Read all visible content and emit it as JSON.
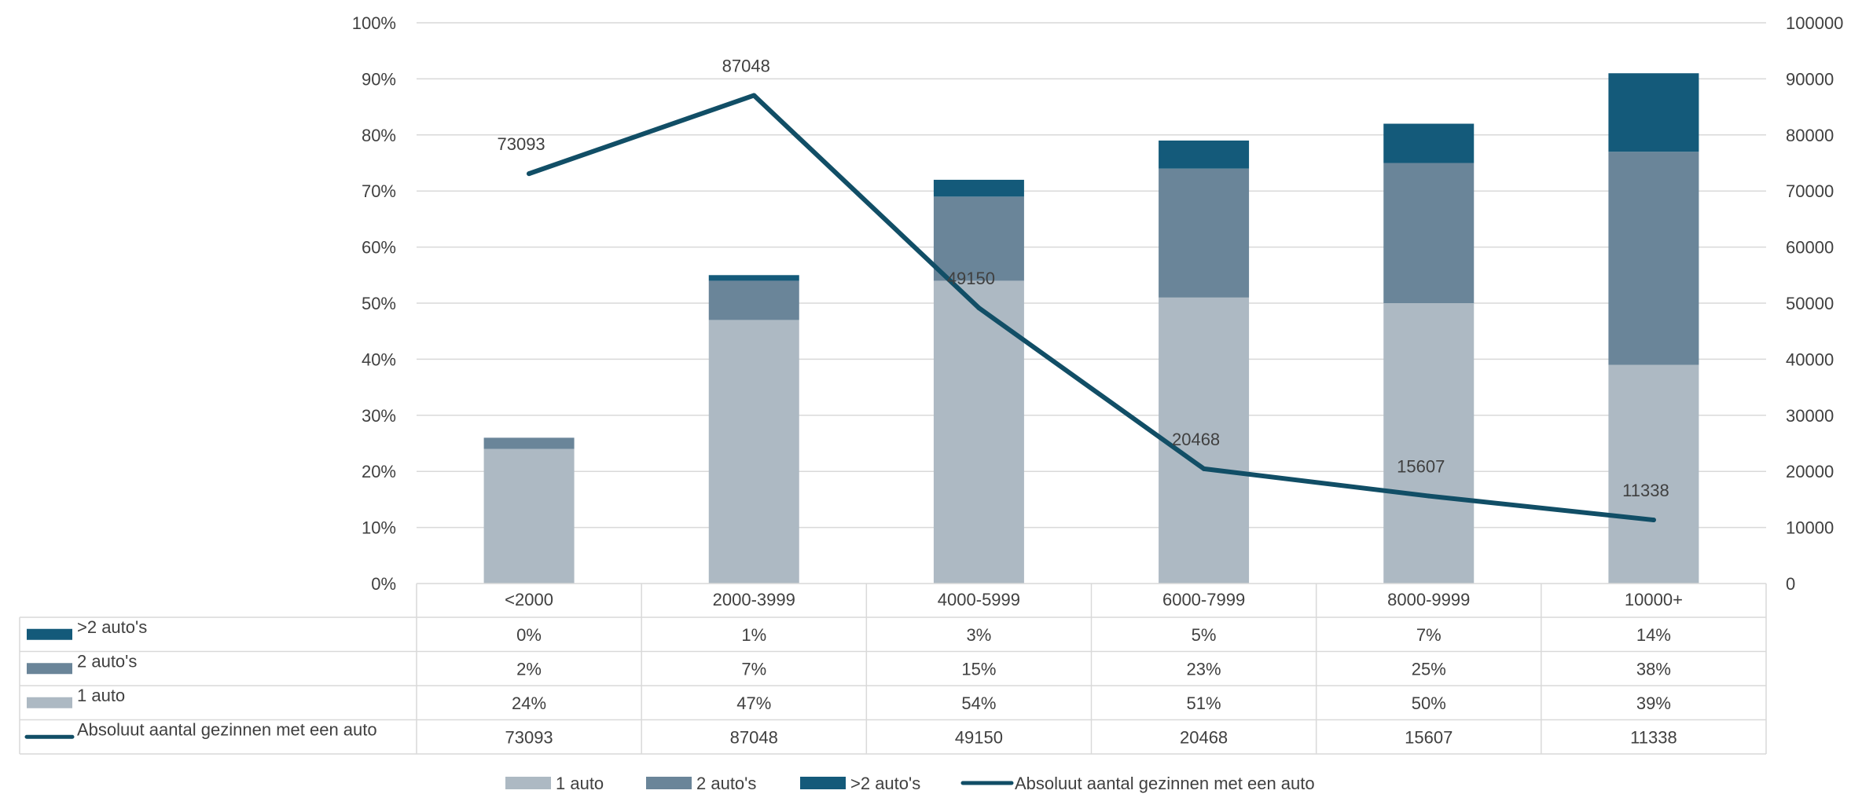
{
  "chart_data": {
    "type": "bar",
    "stacked": true,
    "categories": [
      "<2000",
      "2000-3999",
      "4000-5999",
      "6000-7999",
      "8000-9999",
      "10000+"
    ],
    "series": [
      {
        "name": "1 auto",
        "values": [
          24,
          47,
          54,
          51,
          50,
          39
        ],
        "labels": [
          "24%",
          "47%",
          "54%",
          "51%",
          "50%",
          "39%"
        ],
        "color": "#adb9c3",
        "kind": "bar",
        "axis": "left"
      },
      {
        "name": "2 auto's",
        "values": [
          2,
          7,
          15,
          23,
          25,
          38
        ],
        "labels": [
          "2%",
          "7%",
          "15%",
          "23%",
          "25%",
          "38%"
        ],
        "color": "#6a8599",
        "kind": "bar",
        "axis": "left"
      },
      {
        "name": ">2 auto's",
        "values": [
          0,
          1,
          3,
          5,
          7,
          14
        ],
        "labels": [
          "0%",
          "1%",
          "3%",
          "5%",
          "7%",
          "14%"
        ],
        "color": "#145a7a",
        "kind": "bar",
        "axis": "left"
      },
      {
        "name": "Absoluut aantal gezinnen met een auto",
        "values": [
          73093,
          87048,
          49150,
          20468,
          15607,
          11338
        ],
        "labels": [
          "73093",
          "87048",
          "49150",
          "20468",
          "15607",
          "11338"
        ],
        "color": "#114e66",
        "kind": "line",
        "axis": "right"
      }
    ],
    "y_left": {
      "min": 0,
      "max": 100,
      "ticks": [
        "0%",
        "10%",
        "20%",
        "30%",
        "40%",
        "50%",
        "60%",
        "70%",
        "80%",
        "90%",
        "100%"
      ]
    },
    "y_right": {
      "min": 0,
      "max": 100000,
      "ticks": [
        "0",
        "10000",
        "20000",
        "30000",
        "40000",
        "50000",
        "60000",
        "70000",
        "80000",
        "90000",
        "100000"
      ]
    },
    "data_table_rows": [
      ">2 auto's",
      "2 auto's",
      "1 auto",
      "Absoluut aantal gezinnen met een auto"
    ],
    "legend_order": [
      "1 auto",
      "2 auto's",
      ">2 auto's",
      "Absoluut aantal gezinnen met een auto"
    ],
    "legend_position": "bottom",
    "grid": true
  }
}
